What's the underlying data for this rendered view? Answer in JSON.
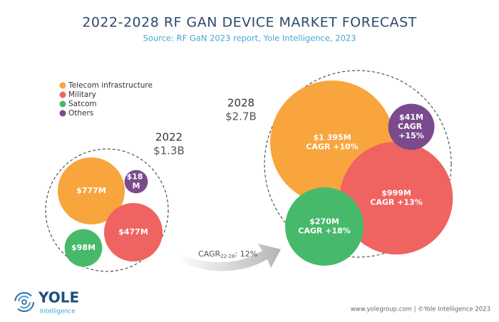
{
  "chart_data": {
    "type": "bubble",
    "title": "2022-2028 RF GAN DEVICE MARKET FORECAST",
    "subtitle": "Source: RF GaN 2023 report, Yole Intelligence, 2023",
    "categories": [
      "2022",
      "2028"
    ],
    "totals": [
      1300,
      2700
    ],
    "total_labels": [
      "$1.3B",
      "$2.7B"
    ],
    "series": [
      {
        "name": "Telecom infrastructure",
        "color": "#f8a53d",
        "values": [
          777,
          1395
        ],
        "value_labels": [
          "$777M",
          "$1 395M"
        ],
        "cagr_label": "CAGR +10%"
      },
      {
        "name": "Military",
        "color": "#ef6461",
        "values": [
          477,
          999
        ],
        "value_labels": [
          "$477M",
          "$999M"
        ],
        "cagr_label": "CAGR +13%"
      },
      {
        "name": "Satcom",
        "color": "#47b96b",
        "values": [
          98,
          270
        ],
        "value_labels": [
          "$98M",
          "$270M"
        ],
        "cagr_label": "CAGR +18%"
      },
      {
        "name": "Others",
        "color": "#7b4a8c",
        "values": [
          18,
          41
        ],
        "value_labels": [
          "$18 M",
          "$41M"
        ],
        "cagr_label": "CAGR +15%"
      }
    ],
    "growth_annotation": {
      "text": "CAGR",
      "subscript": "22-28",
      "suffix": ": 12%"
    },
    "footer": "www.yolegroup.com | ©Yole Intelligence 2023",
    "logo": {
      "name": "YOLE",
      "tagline": "Intelligence"
    }
  }
}
